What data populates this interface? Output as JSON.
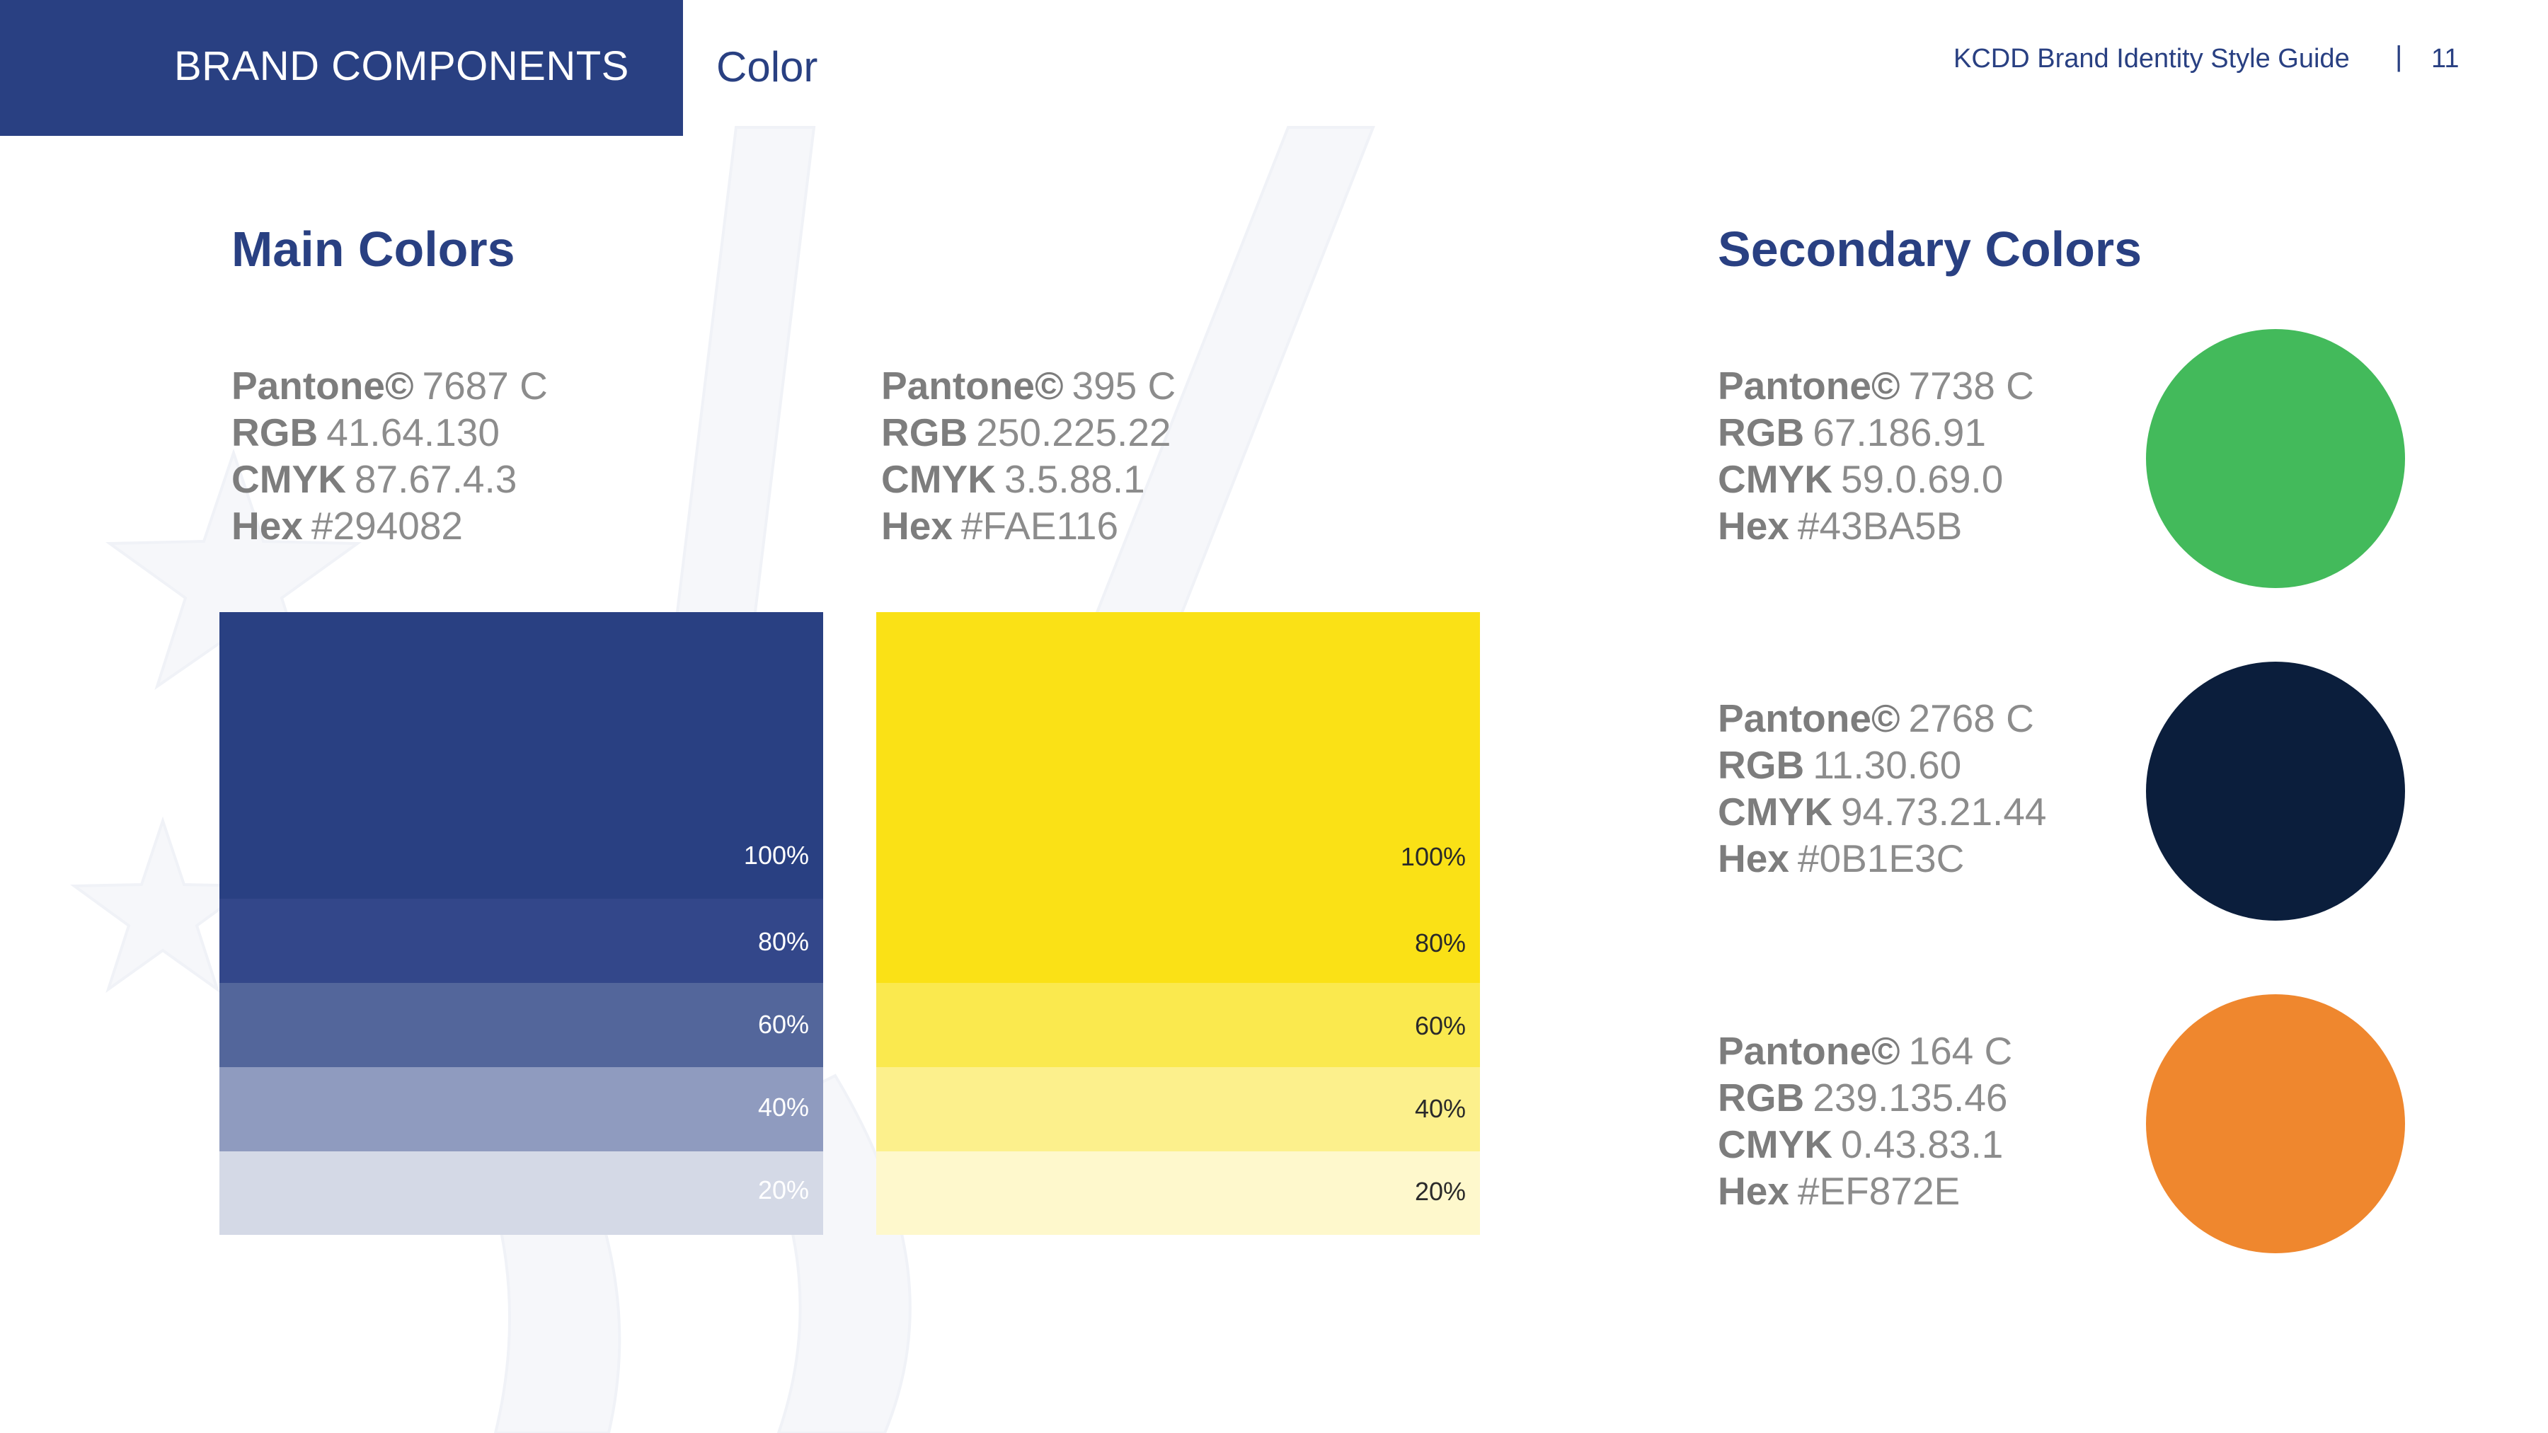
{
  "header": {
    "section": "BRAND COMPONENTS",
    "subsection": "Color",
    "guide_title": "KCDD Brand Identity Style Guide",
    "separator": "|",
    "page_number": "11"
  },
  "colors": {
    "brand_blue": "#294082",
    "white": "#ffffff",
    "label_gray": "#8c8c8c"
  },
  "main": {
    "title": "Main Colors",
    "blue": {
      "pantone_label": "Pantone©",
      "pantone_value": "7687 C",
      "rgb_label": "RGB",
      "rgb_value": "41.64.130",
      "cmyk_label": "CMYK",
      "cmyk_value": "87.67.4.3",
      "hex_label": "Hex",
      "hex_value": "#294082",
      "tints": [
        {
          "label": "100%",
          "color": "#294082"
        },
        {
          "label": "80%",
          "color": "#33478a"
        },
        {
          "label": "60%",
          "color": "#53669b"
        },
        {
          "label": "40%",
          "color": "#8f9bbf"
        },
        {
          "label": "20%",
          "color": "#d4d9e6"
        }
      ]
    },
    "yellow": {
      "pantone_label": "Pantone©",
      "pantone_value": "395 C",
      "rgb_label": "RGB",
      "rgb_value": "250.225.22",
      "cmyk_label": "CMYK",
      "cmyk_value": "3.5.88.1",
      "hex_label": "Hex",
      "hex_value": "#FAE116",
      "tints": [
        {
          "label": "100%",
          "color": "#fae116"
        },
        {
          "label": "80%",
          "color": "#fae116"
        },
        {
          "label": "60%",
          "color": "#fae94e"
        },
        {
          "label": "40%",
          "color": "#fcf08c"
        },
        {
          "label": "20%",
          "color": "#fef8cc"
        }
      ]
    }
  },
  "secondary": {
    "title": "Secondary Colors",
    "swatches": [
      {
        "pantone_label": "Pantone©",
        "pantone_value": "7738 C",
        "rgb_label": "RGB",
        "rgb_value": "67.186.91",
        "cmyk_label": "CMYK",
        "cmyk_value": "59.0.69.0",
        "hex_label": "Hex",
        "hex_value": "#43BA5B",
        "color": "#43BA5B"
      },
      {
        "pantone_label": "Pantone©",
        "pantone_value": "2768 C",
        "rgb_label": "RGB",
        "rgb_value": "11.30.60",
        "cmyk_label": "CMYK",
        "cmyk_value": "94.73.21.44",
        "hex_label": "Hex",
        "hex_value": "#0B1E3C",
        "color": "#0B1E3C"
      },
      {
        "pantone_label": "Pantone©",
        "pantone_value": "164 C",
        "rgb_label": "RGB",
        "rgb_value": "239.135.46",
        "cmyk_label": "CMYK",
        "cmyk_value": "0.43.83.1",
        "hex_label": "Hex",
        "hex_value": "#EF872E",
        "color": "#EF872E"
      }
    ]
  }
}
